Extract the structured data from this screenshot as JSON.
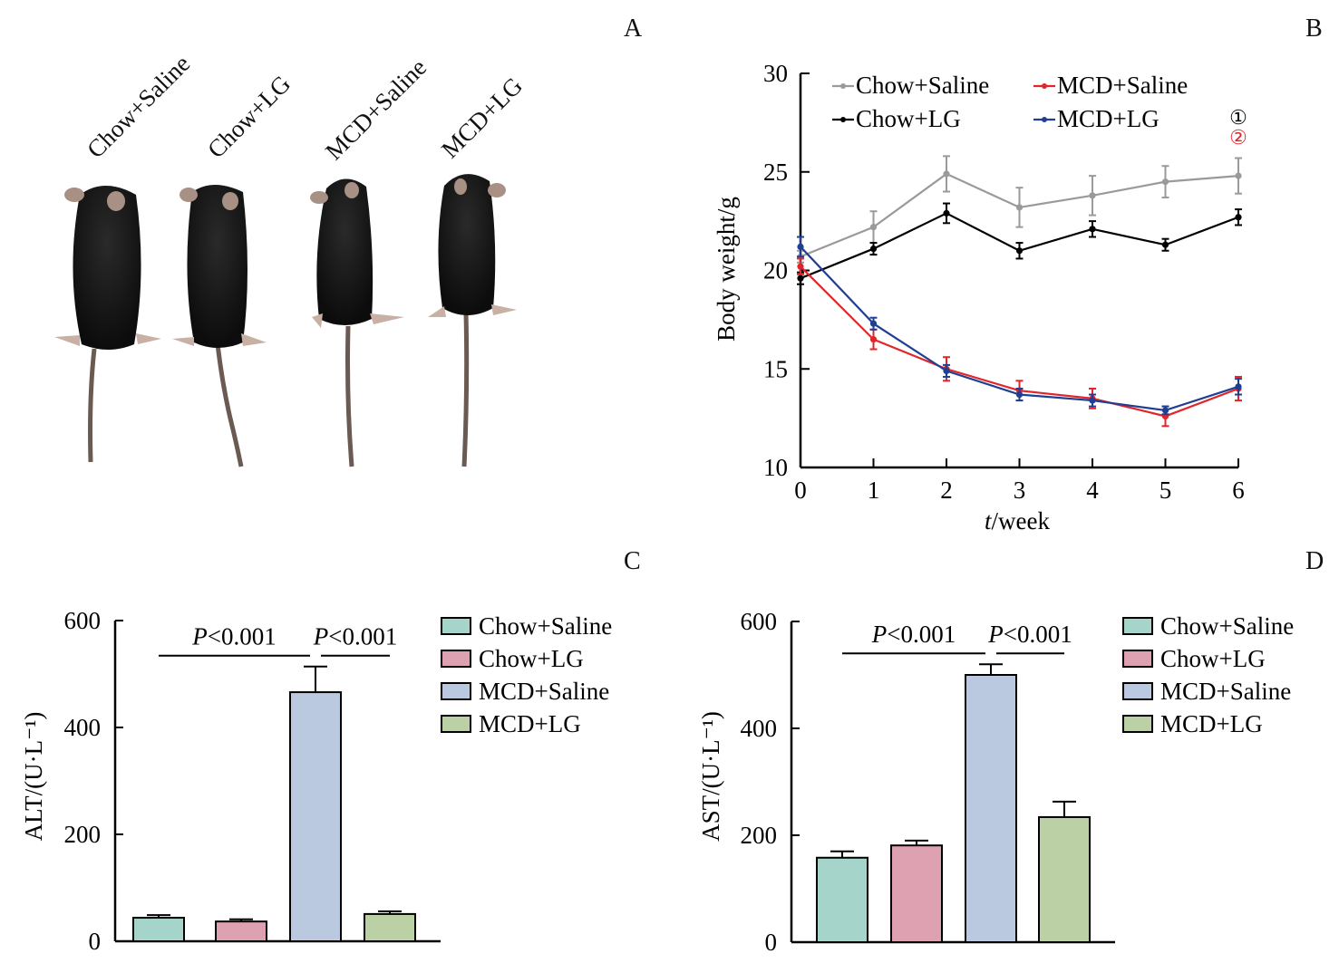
{
  "panels": {
    "A": {
      "letter": "A",
      "mouse_labels": [
        "Chow+Saline",
        "Chow+LG",
        "MCD+Saline",
        "MCD+LG"
      ]
    },
    "B": {
      "letter": "B"
    },
    "C": {
      "letter": "C"
    },
    "D": {
      "letter": "D"
    }
  },
  "colors": {
    "chow_saline_line": "#9a9a9a",
    "chow_lg_line": "#000000",
    "mcd_saline_line": "#e0262b",
    "mcd_lg_line": "#1f3f93",
    "bar_chow_saline": "#a5d4cb",
    "bar_chow_lg": "#dea1b1",
    "bar_mcd_saline": "#bac8e0",
    "bar_mcd_lg": "#bcd0a6"
  },
  "chart_data": [
    {
      "id": "B",
      "type": "line",
      "title": "",
      "xlabel_italic": "t",
      "xlabel_rest": "/week",
      "ylabel": "Body weight/g",
      "x": [
        0,
        1,
        2,
        3,
        4,
        5,
        6
      ],
      "xticks": [
        "0",
        "1",
        "2",
        "3",
        "4",
        "5",
        "6"
      ],
      "ylim": [
        10,
        30
      ],
      "yticks": [
        "10",
        "15",
        "20",
        "25",
        "30"
      ],
      "legend": "top",
      "annotations": [
        {
          "text": "①",
          "color": "#000000"
        },
        {
          "text": "②",
          "color": "#e0262b"
        }
      ],
      "series": [
        {
          "name": "Chow+Saline",
          "color": "#9a9a9a",
          "values": [
            20.7,
            22.2,
            24.9,
            23.2,
            23.8,
            24.5,
            24.8
          ],
          "errors": [
            0.3,
            0.8,
            0.9,
            1.0,
            1.0,
            0.8,
            0.9
          ]
        },
        {
          "name": "Chow+LG",
          "color": "#000000",
          "values": [
            19.6,
            21.1,
            22.9,
            21.0,
            22.1,
            21.3,
            22.7
          ],
          "errors": [
            0.3,
            0.3,
            0.5,
            0.4,
            0.4,
            0.3,
            0.4
          ]
        },
        {
          "name": "MCD+Saline",
          "color": "#e0262b",
          "values": [
            20.2,
            16.5,
            15.0,
            13.9,
            13.5,
            12.6,
            14.0
          ],
          "errors": [
            0.4,
            0.5,
            0.6,
            0.5,
            0.5,
            0.5,
            0.6
          ]
        },
        {
          "name": "MCD+LG",
          "color": "#1f3f93",
          "values": [
            21.2,
            17.3,
            14.9,
            13.7,
            13.4,
            12.9,
            14.1
          ],
          "errors": [
            0.5,
            0.3,
            0.3,
            0.3,
            0.3,
            0.2,
            0.4
          ]
        }
      ]
    },
    {
      "id": "C",
      "type": "bar",
      "ylabel": "ALT/(U·L⁻¹)",
      "ylim": [
        0,
        600
      ],
      "yticks": [
        "0",
        "200",
        "400",
        "600"
      ],
      "categories": [
        "Chow+Saline",
        "Chow+LG",
        "MCD+Saline",
        "MCD+LG"
      ],
      "values": [
        44,
        37,
        466,
        51
      ],
      "errors": [
        5,
        4,
        48,
        5
      ],
      "colors": [
        "#a5d4cb",
        "#dea1b1",
        "#bac8e0",
        "#bcd0a6"
      ],
      "legend": "right",
      "significance": [
        {
          "label_italic": "P",
          "label_rest": "<0.001",
          "from": 0,
          "to": 2
        },
        {
          "label_italic": "P",
          "label_rest": "<0.001",
          "from": 2,
          "to": 3
        }
      ]
    },
    {
      "id": "D",
      "type": "bar",
      "ylabel": "AST/(U·L⁻¹)",
      "ylim": [
        0,
        600
      ],
      "yticks": [
        "0",
        "200",
        "400",
        "600"
      ],
      "categories": [
        "Chow+Saline",
        "Chow+LG",
        "MCD+Saline",
        "MCD+LG"
      ],
      "values": [
        158,
        181,
        500,
        234
      ],
      "errors": [
        12,
        9,
        20,
        29
      ],
      "colors": [
        "#a5d4cb",
        "#dea1b1",
        "#bac8e0",
        "#bcd0a6"
      ],
      "legend": "right",
      "significance": [
        {
          "label_italic": "P",
          "label_rest": "<0.001",
          "from": 0,
          "to": 2
        },
        {
          "label_italic": "P",
          "label_rest": "<0.001",
          "from": 2,
          "to": 3
        }
      ]
    }
  ]
}
